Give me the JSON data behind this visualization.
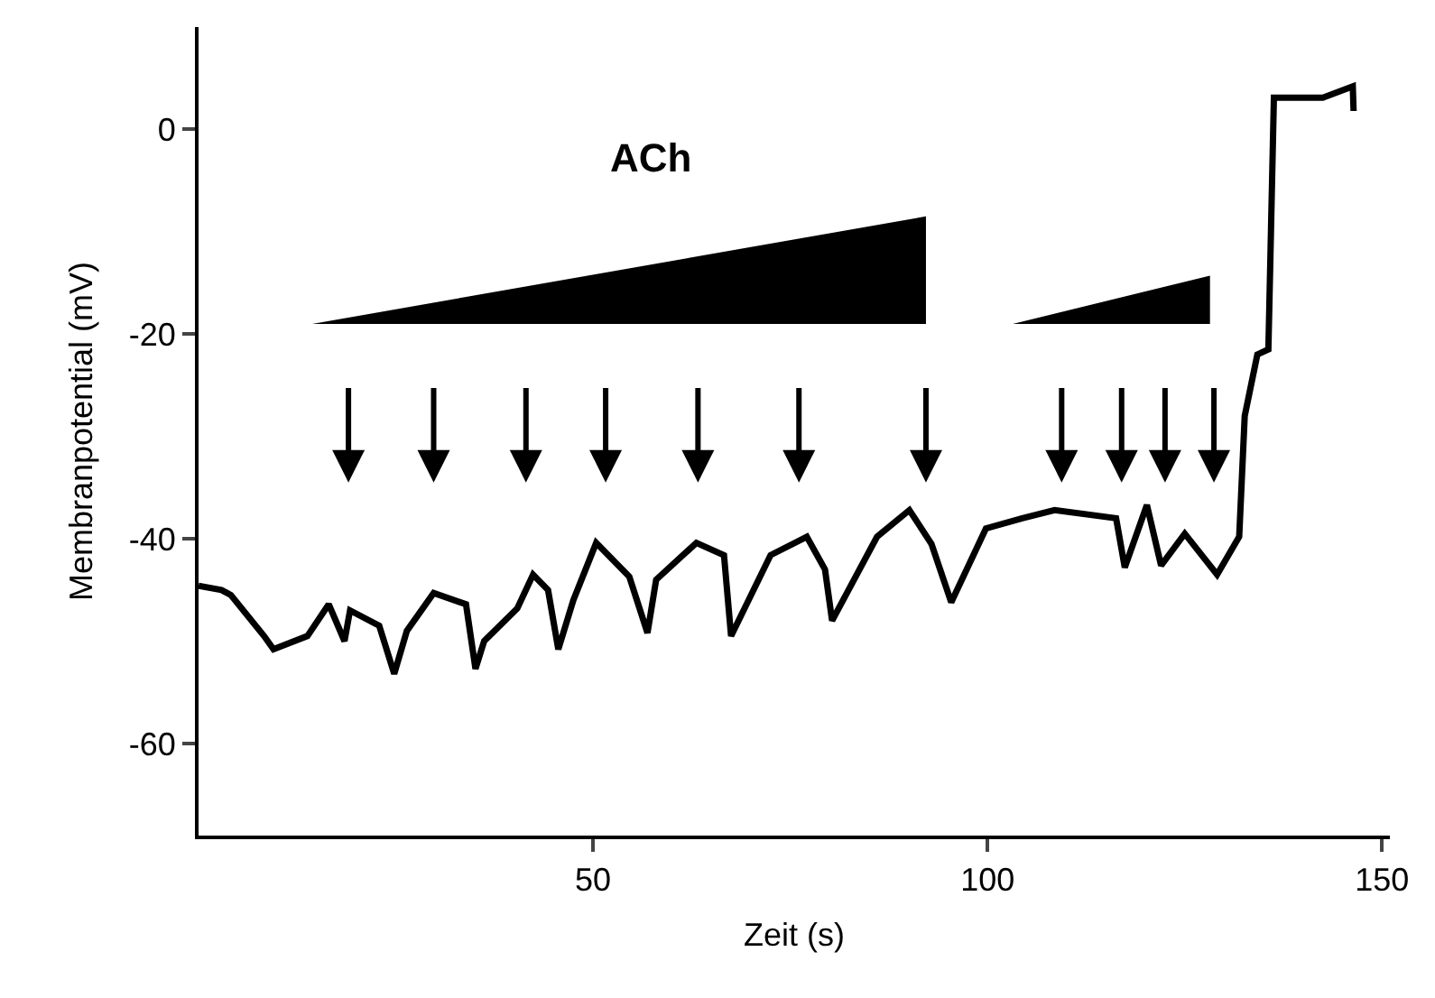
{
  "chart_data": {
    "type": "line",
    "xlabel": "Zeit (s)",
    "ylabel": "Membranpotential (mV)",
    "xlim": [
      0,
      151
    ],
    "ylim": [
      -69,
      10
    ],
    "xticks": [
      50,
      100,
      150
    ],
    "yticks": [
      0,
      -20,
      -40,
      -60
    ],
    "marker": "none",
    "line_style": "solid",
    "series": [
      {
        "color": "#000000",
        "x": [
          0,
          2.9,
          4.1,
          8.3,
          9.5,
          13.8,
          16.5,
          18.5,
          19.2,
          22.9,
          24.8,
          26.4,
          29.8,
          33.9,
          35.1,
          36.2,
          40.4,
          42.4,
          44.3,
          45.6,
          47.5,
          50.4,
          54.6,
          56.9,
          58.0,
          63.1,
          66.6,
          67.5,
          72.5,
          77.1,
          79.4,
          80.3,
          86,
          90.1,
          92.9,
          95.4,
          99.8,
          104.4,
          108.5,
          116.3,
          117.4,
          120.2,
          122.0,
          125,
          129.1,
          131.9,
          132.6,
          134.2,
          135.6,
          136.3,
          137.2,
          142.5,
          146.3,
          146.4
        ],
        "values": [
          -44.6,
          -45.0,
          -45.5,
          -49.5,
          -50.8,
          -49.5,
          -46.4,
          -50.0,
          -47.0,
          -48.5,
          -53.2,
          -49.0,
          -45.3,
          -46.4,
          -52.7,
          -50.0,
          -46.8,
          -43.5,
          -45.0,
          -50.8,
          -46.0,
          -40.4,
          -43.7,
          -49.2,
          -44.0,
          -40.4,
          -41.6,
          -49.5,
          -41.6,
          -39.8,
          -43.0,
          -48.0,
          -39.8,
          -37.2,
          -40.5,
          -46.2,
          -39.0,
          -38.0,
          -37.2,
          -38.0,
          -42.8,
          -36.7,
          -42.6,
          -39.5,
          -43.5,
          -39.8,
          -28.0,
          -22.0,
          -21.5,
          3.1,
          3.1,
          3.1,
          4.2,
          1.8
        ]
      }
    ],
    "annotations": [
      "ACh"
    ]
  }
}
